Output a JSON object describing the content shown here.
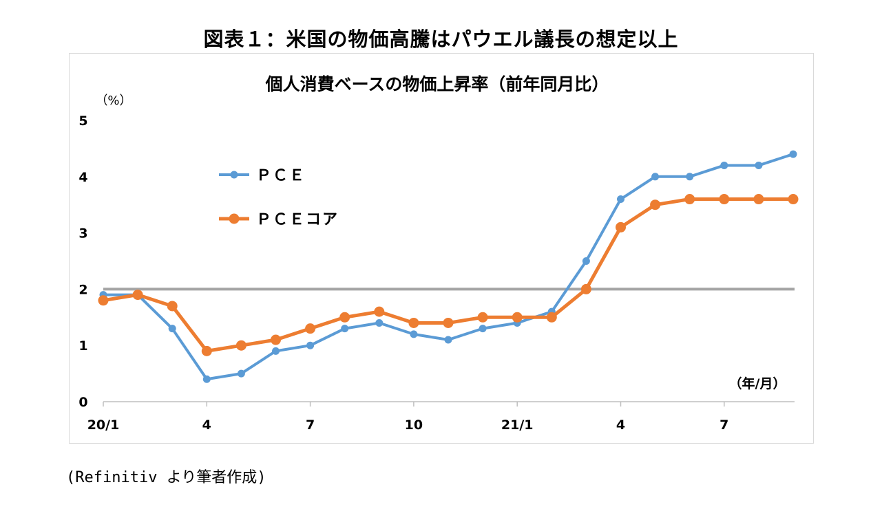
{
  "figure_title": "図表１：米国の物価高騰はパウエル議長の想定以上",
  "source": "(Refinitiv より筆者作成)",
  "chart_data": {
    "type": "line",
    "title": "個人消費ベースの物価上昇率（前年同月比）",
    "y_unit": "（%）",
    "x_unit": "（年/月）",
    "ylim": [
      0,
      5
    ],
    "yticks": [
      "0",
      "1",
      "2",
      "3",
      "4",
      "5"
    ],
    "x": [
      "20/1",
      "20/2",
      "20/3",
      "20/4",
      "20/5",
      "20/6",
      "20/7",
      "20/8",
      "20/9",
      "20/10",
      "20/11",
      "20/12",
      "21/1",
      "21/2",
      "21/3",
      "21/4",
      "21/5",
      "21/6",
      "21/7",
      "21/8",
      "21/9"
    ],
    "xtick_labels": [
      {
        "index": 0,
        "label": "20/1"
      },
      {
        "index": 3,
        "label": "4"
      },
      {
        "index": 6,
        "label": "7"
      },
      {
        "index": 9,
        "label": "10"
      },
      {
        "index": 12,
        "label": "21/1"
      },
      {
        "index": 15,
        "label": "4"
      },
      {
        "index": 18,
        "label": "7"
      }
    ],
    "reference_line": {
      "value": 2,
      "color": "#a5a5a5"
    },
    "grid": false,
    "legend_position": "upper-left",
    "series": [
      {
        "name": "ＰＣＥ",
        "color": "#5b9bd5",
        "values": [
          1.9,
          1.9,
          1.3,
          0.4,
          0.5,
          0.9,
          1.0,
          1.3,
          1.4,
          1.2,
          1.1,
          1.3,
          1.4,
          1.6,
          2.5,
          3.6,
          4.0,
          4.0,
          4.2,
          4.2,
          4.4
        ]
      },
      {
        "name": "ＰＣＥコア",
        "color": "#ed7d31",
        "values": [
          1.8,
          1.9,
          1.7,
          0.9,
          1.0,
          1.1,
          1.3,
          1.5,
          1.6,
          1.4,
          1.4,
          1.5,
          1.5,
          1.5,
          2.0,
          3.1,
          3.5,
          3.6,
          3.6,
          3.6,
          3.6
        ]
      }
    ]
  }
}
